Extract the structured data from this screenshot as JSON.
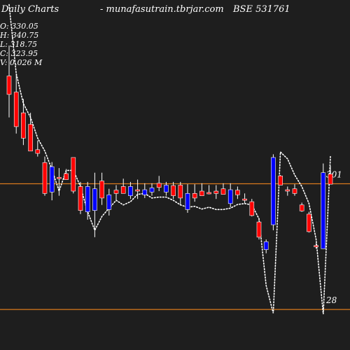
{
  "header": {
    "left": "Daily Charts",
    "center": "-  munafasutrain.tbrjar.com",
    "right": "BSE 531761"
  },
  "ohlc": {
    "open": "O: 330.05",
    "high": "H: 340.75",
    "low": "L: 318.75",
    "close": "C: 323.95",
    "volume": "V: 0.026  M"
  },
  "colors": {
    "background": "#1e1e1e",
    "up": "#0000ff",
    "down": "#ff0000",
    "wick": "#ffffff",
    "level": "#d97a1c",
    "overlay": "#ffffff"
  },
  "chart_data": {
    "type": "candlestick",
    "price_range": [
      -60,
      700
    ],
    "levels": [
      {
        "value": 301,
        "label": "301"
      },
      {
        "value": 28,
        "label": "28"
      }
    ],
    "candles": [
      {
        "o": 535,
        "h": 601,
        "l": 445,
        "c": 495,
        "dir": "down"
      },
      {
        "o": 500,
        "h": 540,
        "l": 410,
        "c": 425,
        "dir": "down"
      },
      {
        "o": 455,
        "h": 485,
        "l": 385,
        "c": 400,
        "dir": "down"
      },
      {
        "o": 430,
        "h": 455,
        "l": 372,
        "c": 372,
        "dir": "down"
      },
      {
        "o": 375,
        "h": 395,
        "l": 360,
        "c": 367,
        "dir": "down"
      },
      {
        "o": 347,
        "h": 360,
        "l": 275,
        "c": 280,
        "dir": "down"
      },
      {
        "o": 283,
        "h": 348,
        "l": 265,
        "c": 338,
        "dir": "up"
      },
      {
        "o": 315,
        "h": 335,
        "l": 275,
        "c": 315,
        "dir": "down"
      },
      {
        "o": 323,
        "h": 333,
        "l": 310,
        "c": 310,
        "dir": "down"
      },
      {
        "o": 358,
        "h": 358,
        "l": 280,
        "c": 285,
        "dir": "down"
      },
      {
        "o": 295,
        "h": 305,
        "l": 235,
        "c": 243,
        "dir": "down"
      },
      {
        "o": 240,
        "h": 305,
        "l": 223,
        "c": 295,
        "dir": "up"
      },
      {
        "o": 290,
        "h": 325,
        "l": 185,
        "c": 243,
        "dir": "up"
      },
      {
        "o": 307,
        "h": 325,
        "l": 255,
        "c": 270,
        "dir": "down"
      },
      {
        "o": 245,
        "h": 290,
        "l": 232,
        "c": 277,
        "dir": "up"
      },
      {
        "o": 287,
        "h": 298,
        "l": 265,
        "c": 280,
        "dir": "down"
      },
      {
        "o": 295,
        "h": 312,
        "l": 280,
        "c": 280,
        "dir": "down"
      },
      {
        "o": 275,
        "h": 305,
        "l": 268,
        "c": 295,
        "dir": "up"
      },
      {
        "o": 288,
        "h": 310,
        "l": 268,
        "c": 288,
        "dir": "down"
      },
      {
        "o": 277,
        "h": 302,
        "l": 270,
        "c": 288,
        "dir": "up"
      },
      {
        "o": 283,
        "h": 302,
        "l": 275,
        "c": 292,
        "dir": "up"
      },
      {
        "o": 302,
        "h": 318,
        "l": 285,
        "c": 293,
        "dir": "down"
      },
      {
        "o": 283,
        "h": 305,
        "l": 275,
        "c": 298,
        "dir": "up"
      },
      {
        "o": 297,
        "h": 305,
        "l": 268,
        "c": 275,
        "dir": "down"
      },
      {
        "o": 298,
        "h": 305,
        "l": 255,
        "c": 270,
        "dir": "down"
      },
      {
        "o": 245,
        "h": 300,
        "l": 238,
        "c": 280,
        "dir": "up"
      },
      {
        "o": 280,
        "h": 300,
        "l": 262,
        "c": 270,
        "dir": "down"
      },
      {
        "o": 285,
        "h": 302,
        "l": 275,
        "c": 275,
        "dir": "down"
      },
      {
        "o": 282,
        "h": 298,
        "l": 278,
        "c": 282,
        "dir": "down"
      },
      {
        "o": 285,
        "h": 298,
        "l": 268,
        "c": 280,
        "dir": "down"
      },
      {
        "o": 290,
        "h": 302,
        "l": 278,
        "c": 278,
        "dir": "down"
      },
      {
        "o": 258,
        "h": 302,
        "l": 250,
        "c": 288,
        "dir": "up"
      },
      {
        "o": 287,
        "h": 295,
        "l": 268,
        "c": 277,
        "dir": "down"
      },
      {
        "o": 268,
        "h": 280,
        "l": 258,
        "c": 268,
        "dir": "down"
      },
      {
        "o": 262,
        "h": 268,
        "l": 230,
        "c": 232,
        "dir": "down"
      },
      {
        "o": 218,
        "h": 225,
        "l": 180,
        "c": 185,
        "dir": "down"
      },
      {
        "o": 158,
        "h": 180,
        "l": 150,
        "c": 175,
        "dir": "up"
      },
      {
        "o": 212,
        "h": 365,
        "l": 200,
        "c": 358,
        "dir": "up"
      },
      {
        "o": 318,
        "h": 320,
        "l": 298,
        "c": 298,
        "dir": "down"
      },
      {
        "o": 288,
        "h": 295,
        "l": 275,
        "c": 285,
        "dir": "down"
      },
      {
        "o": 290,
        "h": 300,
        "l": 275,
        "c": 280,
        "dir": "down"
      },
      {
        "o": 255,
        "h": 260,
        "l": 240,
        "c": 242,
        "dir": "down"
      },
      {
        "o": 235,
        "h": 240,
        "l": 195,
        "c": 197,
        "dir": "down"
      },
      {
        "o": 167,
        "h": 172,
        "l": 160,
        "c": 165,
        "dir": "down"
      },
      {
        "o": 160,
        "h": 345,
        "l": 160,
        "c": 325,
        "dir": "up"
      },
      {
        "o": 322,
        "h": 340,
        "l": 300,
        "c": 300,
        "dir": "down"
      }
    ],
    "overlay": [
      690,
      540,
      475,
      445,
      400,
      372,
      332,
      285,
      330,
      330,
      295,
      240,
      200,
      230,
      248,
      265,
      255,
      262,
      278,
      280,
      270,
      272,
      272,
      265,
      255,
      250,
      252,
      246,
      250,
      245,
      245,
      248,
      256,
      258,
      255,
      225,
      80,
      20,
      370,
      355,
      320,
      295,
      258,
      180,
      18,
      360
    ]
  }
}
